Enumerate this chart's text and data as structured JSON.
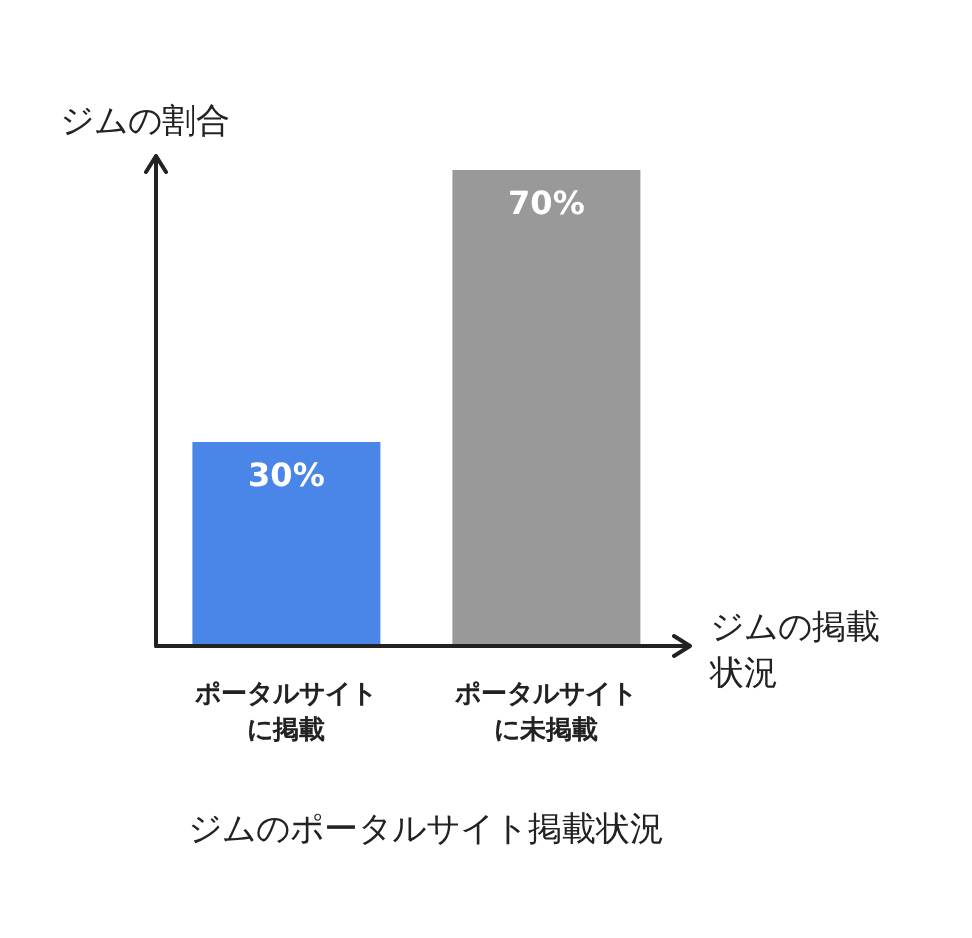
{
  "chart_data": {
    "type": "bar",
    "title": "ジムのポータルサイト掲載状況",
    "xlabel": "ジムの掲載状況",
    "ylabel": "ジムの割合",
    "categories": [
      "ポータルサイトに掲載",
      "ポータルサイトに未掲載"
    ],
    "values": [
      30,
      70
    ],
    "colors": [
      "#4a86e8",
      "#999999"
    ],
    "value_labels": [
      "30%",
      "70%"
    ],
    "grid": false,
    "legend": false
  }
}
